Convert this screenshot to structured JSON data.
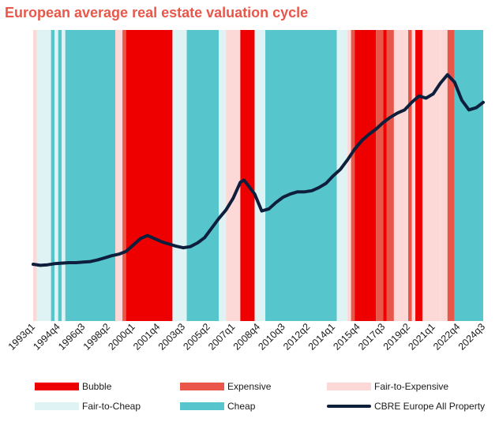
{
  "title": "European average real estate valuation cycle",
  "colors": {
    "Bubble": "#ee0000",
    "Expensive": "#e8574a",
    "Fair-to-Expensive": "#fcd9d6",
    "Fair-to-Cheap": "#dff3f4",
    "Cheap": "#56c5cc",
    "line": "#0d1f3c"
  },
  "legend": [
    {
      "label": "Bubble",
      "kind": "swatch",
      "color_key": "Bubble"
    },
    {
      "label": "Expensive",
      "kind": "swatch",
      "color_key": "Expensive"
    },
    {
      "label": "Fair-to-Expensive",
      "kind": "swatch",
      "color_key": "Fair-to-Expensive"
    },
    {
      "label": "Fair-to-Cheap",
      "kind": "swatch",
      "color_key": "Fair-to-Cheap"
    },
    {
      "label": "Cheap",
      "kind": "swatch",
      "color_key": "Cheap"
    },
    {
      "label": "CBRE Europe All Property",
      "kind": "line",
      "color_key": "line"
    }
  ],
  "chart_data": {
    "type": "line",
    "title": "European average real estate valuation cycle",
    "x_start": "1993q1",
    "x_end": "2024q3",
    "tick_labels": [
      "1993q1",
      "1994q4",
      "1996q3",
      "1998q2",
      "2000q1",
      "2001q4",
      "2003q3",
      "2005q2",
      "2007q1",
      "2008q4",
      "2010q3",
      "2012q2",
      "2014q1",
      "2015q4",
      "2017q3",
      "2019q2",
      "2021q1",
      "2022q4",
      "2024q3"
    ],
    "background_regimes": [
      {
        "from": "1993q1",
        "to": "1993q2",
        "regime": "Fair-to-Expensive"
      },
      {
        "from": "1993q2",
        "to": "1994q2",
        "regime": "Fair-to-Cheap"
      },
      {
        "from": "1994q2",
        "to": "1994q3",
        "regime": "Cheap"
      },
      {
        "from": "1994q3",
        "to": "1994q4",
        "regime": "Fair-to-Cheap"
      },
      {
        "from": "1994q4",
        "to": "1995q1",
        "regime": "Cheap"
      },
      {
        "from": "1995q1",
        "to": "1995q2",
        "regime": "Fair-to-Cheap"
      },
      {
        "from": "1995q2",
        "to": "1998q4",
        "regime": "Cheap"
      },
      {
        "from": "1998q4",
        "to": "1999q2",
        "regime": "Fair-to-Expensive"
      },
      {
        "from": "1999q2",
        "to": "1999q3",
        "regime": "Expensive"
      },
      {
        "from": "1999q3",
        "to": "2002q4",
        "regime": "Bubble"
      },
      {
        "from": "2002q4",
        "to": "2003q4",
        "regime": "Fair-to-Cheap"
      },
      {
        "from": "2003q4",
        "to": "2006q1",
        "regime": "Cheap"
      },
      {
        "from": "2006q1",
        "to": "2006q3",
        "regime": "Fair-to-Cheap"
      },
      {
        "from": "2006q3",
        "to": "2007q3",
        "regime": "Fair-to-Expensive"
      },
      {
        "from": "2007q3",
        "to": "2008q3",
        "regime": "Bubble"
      },
      {
        "from": "2008q3",
        "to": "2009q2",
        "regime": "Fair-to-Cheap"
      },
      {
        "from": "2009q2",
        "to": "2014q2",
        "regime": "Cheap"
      },
      {
        "from": "2014q2",
        "to": "2015q1",
        "regime": "Fair-to-Cheap"
      },
      {
        "from": "2015q1",
        "to": "2015q2",
        "regime": "Fair-to-Expensive"
      },
      {
        "from": "2015q2",
        "to": "2015q3",
        "regime": "Expensive"
      },
      {
        "from": "2015q3",
        "to": "2017q1",
        "regime": "Bubble"
      },
      {
        "from": "2017q1",
        "to": "2017q3",
        "regime": "Expensive"
      },
      {
        "from": "2017q3",
        "to": "2017q4",
        "regime": "Bubble"
      },
      {
        "from": "2017q4",
        "to": "2018q2",
        "regime": "Expensive"
      },
      {
        "from": "2018q2",
        "to": "2019q2",
        "regime": "Fair-to-Expensive"
      },
      {
        "from": "2019q2",
        "to": "2019q3",
        "regime": "Expensive"
      },
      {
        "from": "2019q3",
        "to": "2019q4",
        "regime": "Fair-to-Expensive"
      },
      {
        "from": "2019q4",
        "to": "2020q2",
        "regime": "Bubble"
      },
      {
        "from": "2020q2",
        "to": "2021q3",
        "regime": "Fair-to-Expensive"
      },
      {
        "from": "2021q3",
        "to": "2022q1",
        "regime": "Fair-to-Expensive"
      },
      {
        "from": "2022q1",
        "to": "2022q3",
        "regime": "Expensive"
      },
      {
        "from": "2022q3",
        "to": "2024q4",
        "regime": "Cheap"
      }
    ],
    "series": [
      {
        "name": "CBRE Europe All Property",
        "color": "#0d1f3c",
        "x": [
          "1993q1",
          "1993q3",
          "1994q1",
          "1994q3",
          "1995q1",
          "1995q3",
          "1996q1",
          "1996q3",
          "1997q1",
          "1997q3",
          "1998q1",
          "1998q3",
          "1999q1",
          "1999q3",
          "2000q1",
          "2000q3",
          "2001q1",
          "2001q3",
          "2002q1",
          "2002q3",
          "2003q1",
          "2003q3",
          "2004q1",
          "2004q3",
          "2005q1",
          "2005q3",
          "2006q1",
          "2006q3",
          "2007q1",
          "2007q3",
          "2007q4",
          "2008q1",
          "2008q3",
          "2009q1",
          "2009q3",
          "2010q1",
          "2010q3",
          "2011q1",
          "2011q3",
          "2012q1",
          "2012q3",
          "2013q1",
          "2013q3",
          "2014q1",
          "2014q3",
          "2015q1",
          "2015q3",
          "2016q1",
          "2016q3",
          "2017q1",
          "2017q3",
          "2018q1",
          "2018q3",
          "2019q1",
          "2019q3",
          "2020q1",
          "2020q3",
          "2021q1",
          "2021q3",
          "2022q1",
          "2022q3",
          "2023q1",
          "2023q3",
          "2024q1",
          "2024q3"
        ],
        "values": [
          20,
          19,
          19.5,
          20.5,
          21,
          21.5,
          21.5,
          22,
          22.5,
          24,
          26,
          28,
          29.5,
          32,
          38,
          44,
          47,
          44,
          41,
          39,
          37,
          35.5,
          36.5,
          40,
          45,
          54,
          63,
          71,
          82,
          97,
          99,
          95,
          86,
          70,
          72,
          78,
          83,
          86,
          88,
          88,
          89,
          92,
          96,
          103,
          109,
          118,
          128,
          136,
          142,
          147,
          153,
          158,
          162,
          165,
          172,
          178,
          176,
          180,
          190,
          198,
          191,
          174,
          165,
          167,
          172
        ]
      }
    ],
    "ylim": [
      0,
      200
    ],
    "grid": false,
    "legend_position": "bottom"
  }
}
